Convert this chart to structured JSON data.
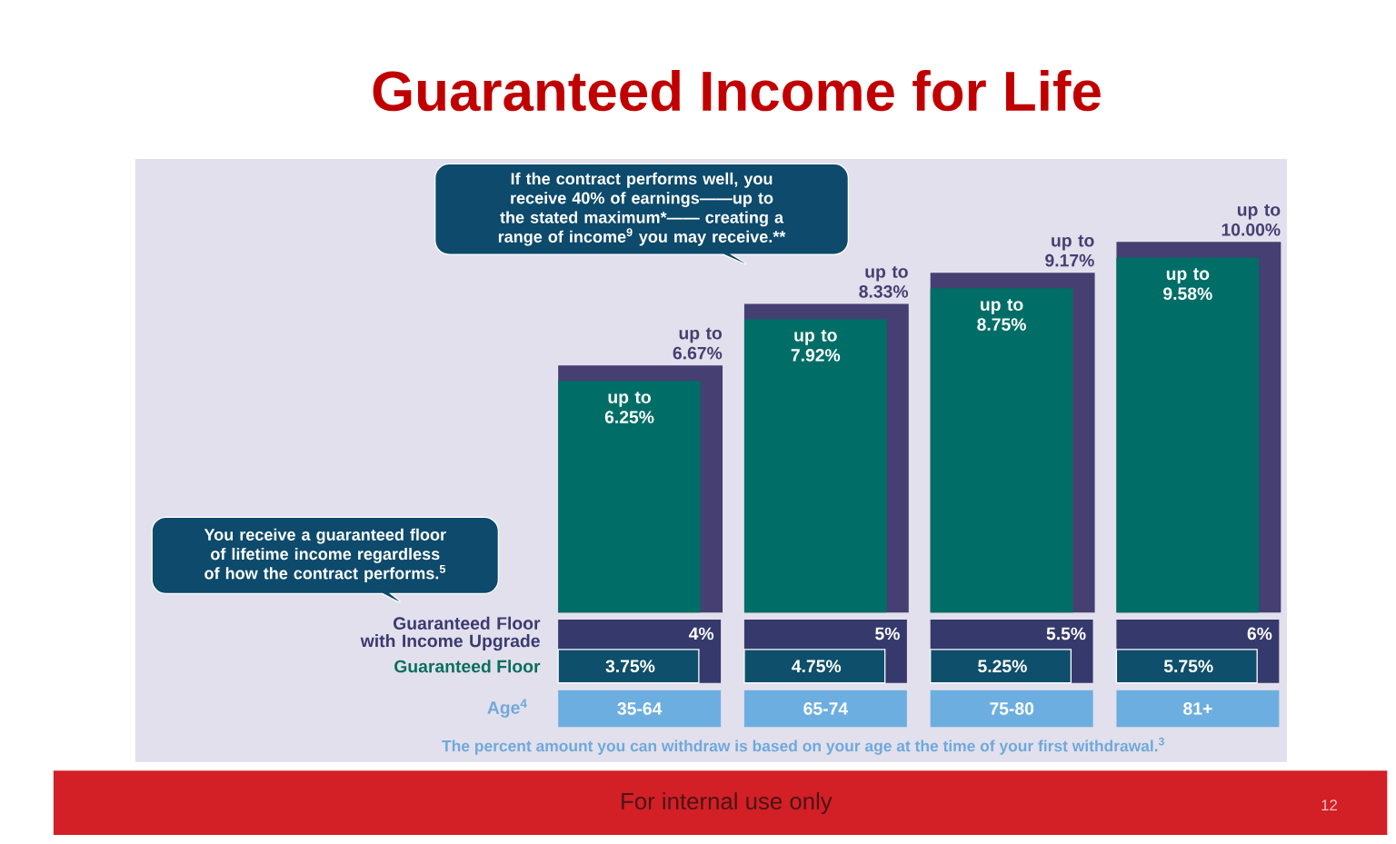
{
  "chart_data": {
    "type": "bar",
    "title": "Guaranteed Income for Life",
    "xlabel": "Age$^{4}$",
    "categories": [
      "35-64",
      "65-74",
      "75-80",
      "81+"
    ],
    "series": [
      {
        "color": "#463f72",
        "values": [
          6.67,
          8.33,
          9.17,
          10.0
        ],
        "value_labels": [
          "up to 6.67%",
          "up to 8.33%",
          "up to 9.17%",
          "up to 10.00%"
        ]
      },
      {
        "color": "#006e66",
        "values": [
          6.25,
          7.92,
          8.75,
          9.58
        ],
        "value_labels": [
          "up to 6.25%",
          "up to 7.92%",
          "up to 8.75%",
          "up to 9.58%"
        ]
      }
    ],
    "annotations": [
      "If the contract performs well, you receive 40% of earnings——up to the stated maximum*—— creating a range of income$^{9}$ you may receive.**",
      "You receive a guaranteed floor of lifetime income regardless of how the contract performs.$^{5}$",
      "Guaranteed Floor with Income Upgrade",
      "Guaranteed Floor",
      "The percent amount you can withdraw is based on your age at the time of your first withdrawal.$^{3}$",
      "For internal use only",
      "12",
      "4%",
      "5%",
      "5.5%",
      "6%",
      "3.75%",
      "4.75%",
      "5.25%",
      "5.75%"
    ]
  }
}
